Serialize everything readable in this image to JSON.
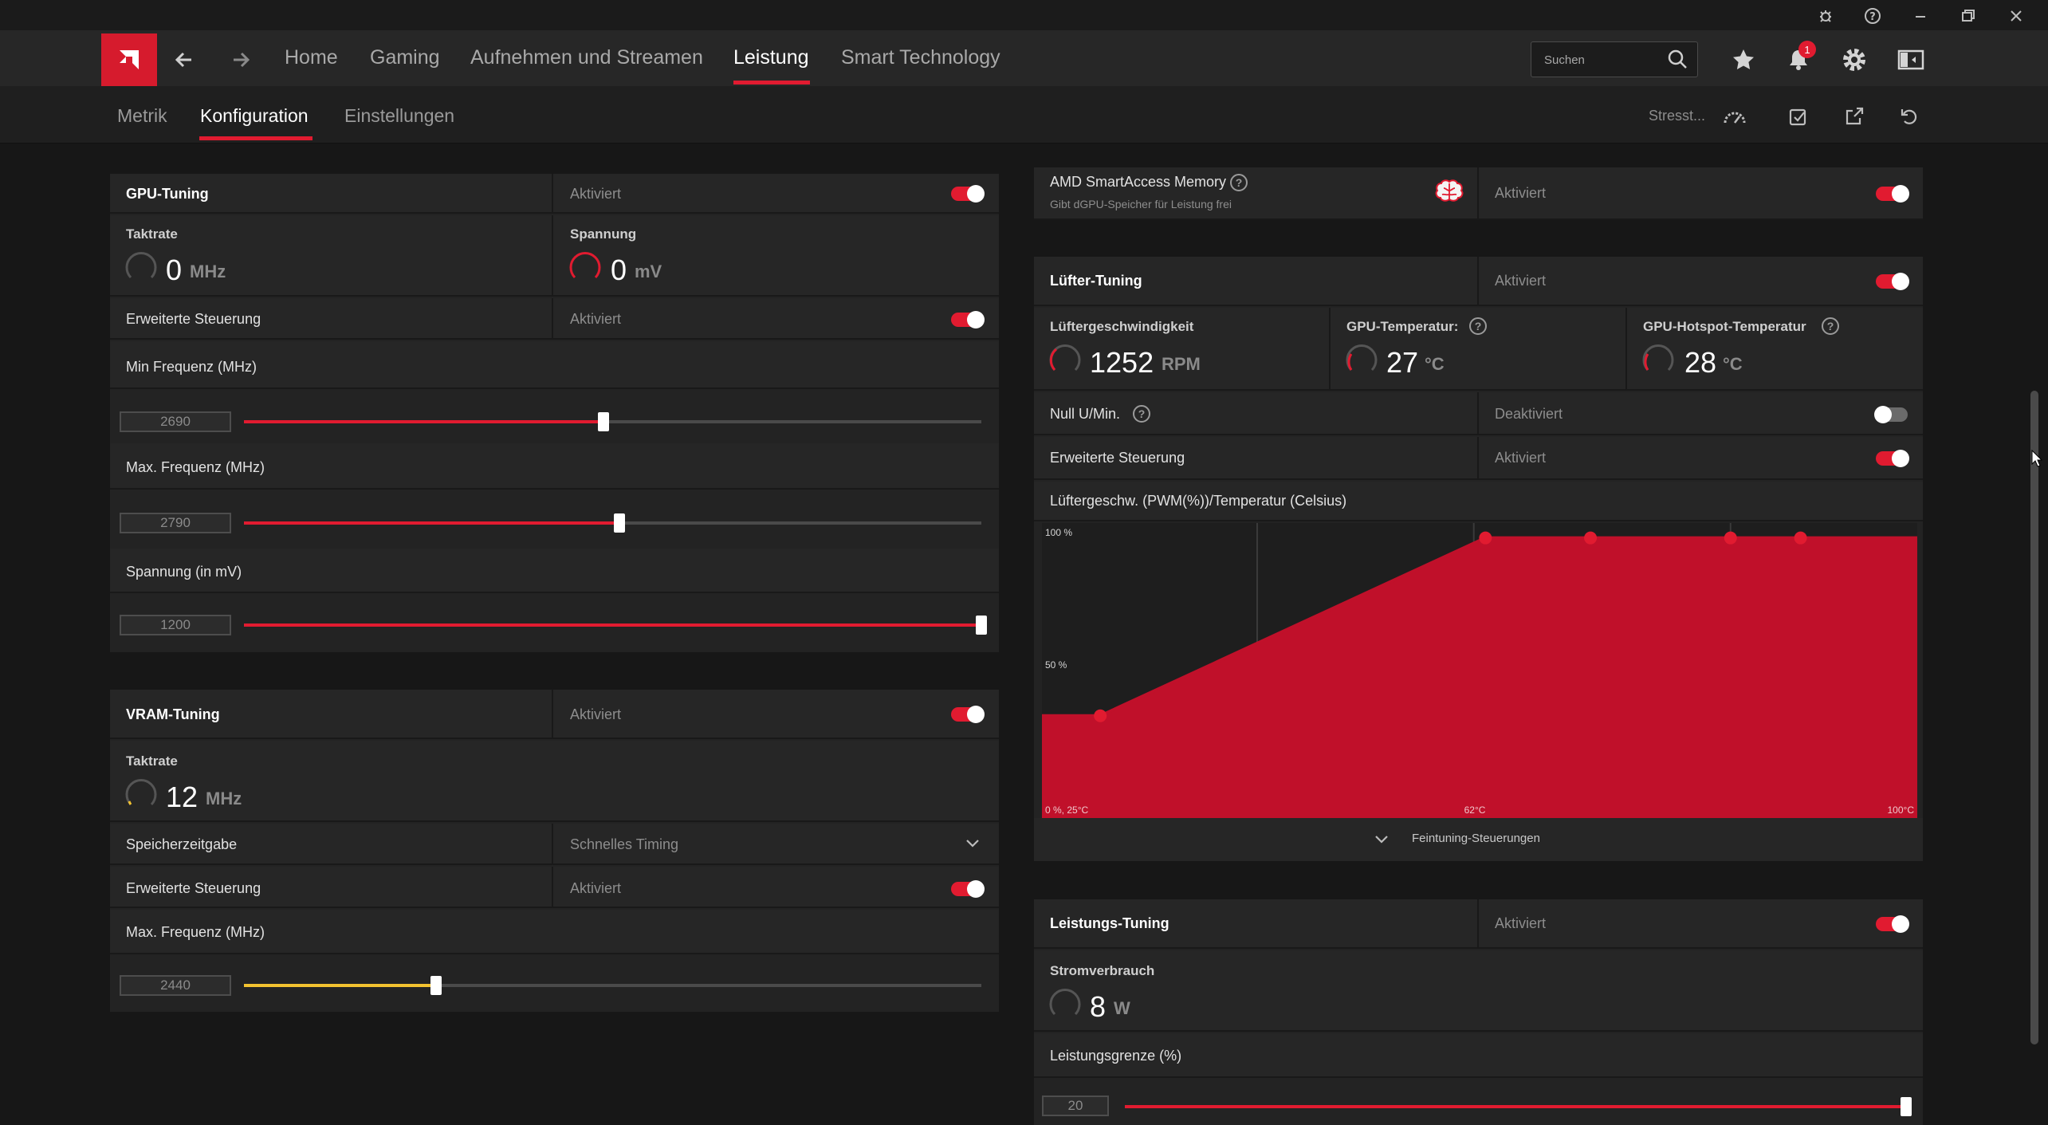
{
  "header": {
    "nav": [
      "Home",
      "Gaming",
      "Aufnehmen und Streamen",
      "Leistung",
      "Smart Technology"
    ],
    "search_placeholder": "Suchen",
    "notification_count": "1"
  },
  "subnav": {
    "tabs": [
      "Metrik",
      "Konfiguration",
      "Einstellungen"
    ],
    "stress_label": "Stresst..."
  },
  "gpu_tuning": {
    "title": "GPU-Tuning",
    "status": "Aktiviert",
    "clock_label": "Taktrate",
    "clock_value": "0",
    "clock_unit": "MHz",
    "voltage_label": "Spannung",
    "voltage_value": "0",
    "voltage_unit": "mV",
    "advanced_label": "Erweiterte Steuerung",
    "advanced_status": "Aktiviert",
    "min_freq_label": "Min Frequenz (MHz)",
    "min_freq_value": "2690",
    "min_freq_fraction": 0.488,
    "max_freq_label": "Max. Frequenz (MHz)",
    "max_freq_value": "2790",
    "max_freq_fraction": 0.509,
    "voltage_slider_label": "Spannung (in mV)",
    "voltage_slider_value": "1200",
    "voltage_slider_fraction": 1.0
  },
  "vram_tuning": {
    "title": "VRAM-Tuning",
    "status": "Aktiviert",
    "clock_label": "Taktrate",
    "clock_value": "12",
    "clock_unit": "MHz",
    "timing_label": "Speicherzeitgabe",
    "timing_value": "Schnelles Timing",
    "advanced_label": "Erweiterte Steuerung",
    "advanced_status": "Aktiviert",
    "max_freq_label": "Max. Frequenz (MHz)",
    "max_freq_value": "2440",
    "max_freq_fraction": 0.26
  },
  "sam": {
    "title": "AMD SmartAccess Memory",
    "subtitle": "Gibt dGPU-Speicher für Leistung frei",
    "status": "Aktiviert"
  },
  "fan_tuning": {
    "title": "Lüfter-Tuning",
    "status": "Aktiviert",
    "speed_label": "Lüftergeschwindigkeit",
    "speed_value": "1252",
    "speed_unit": "RPM",
    "gpu_temp_label": "GPU-Temperatur:",
    "gpu_temp_value": "27",
    "gpu_temp_unit": "°C",
    "hotspot_label": "GPU-Hotspot-Temperatur",
    "hotspot_value": "28",
    "hotspot_unit": "°C",
    "zero_rpm_label": "Null U/Min.",
    "zero_rpm_status": "Deaktiviert",
    "advanced_label": "Erweiterte Steuerung",
    "advanced_status": "Aktiviert",
    "curve_label": "Lüftergeschw. (PWM(%))/Temperatur (Celsius)",
    "fine_tuning_label": "Feintuning-Steuerungen"
  },
  "chart_data": {
    "type": "area",
    "x": [
      30,
      63,
      72,
      84,
      90
    ],
    "values": [
      31,
      98,
      98,
      98,
      98
    ],
    "xlim": [
      25,
      100
    ],
    "ylim": [
      0,
      100
    ],
    "tick_labels": {
      "y_top": "100 %",
      "y_mid": "50 %",
      "origin": "0 %, 25°C",
      "x_mid": "62°C",
      "x_max": "100°C"
    },
    "color": "#c0102a",
    "grid": true
  },
  "power_tuning": {
    "title": "Leistungs-Tuning",
    "status": "Aktiviert",
    "power_label": "Stromverbrauch",
    "power_value": "8",
    "power_unit": "W",
    "limit_label": "Leistungsgrenze (%)",
    "limit_value": "20",
    "limit_fraction": 1.0
  },
  "colors": {
    "accent": "#e11b30",
    "vram_slider": "#f2c230"
  }
}
